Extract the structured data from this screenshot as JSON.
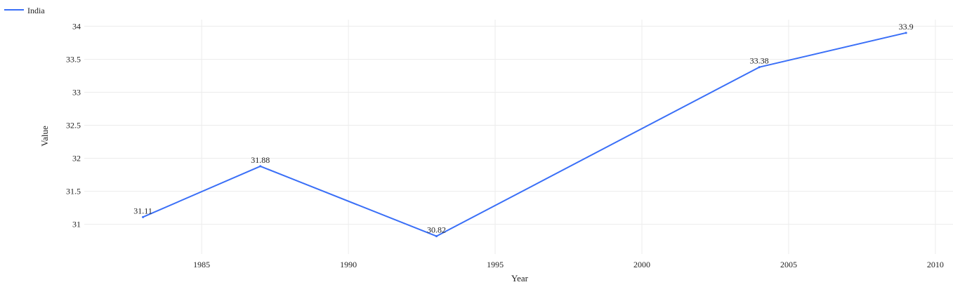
{
  "colors": {
    "series": "#3a6ff7",
    "grid": "#ececec",
    "text": "#222222"
  },
  "chart_data": {
    "type": "line",
    "title": "",
    "xlabel": "Year",
    "ylabel": "Value",
    "xlim": [
      1981,
      2010.6
    ],
    "ylim": [
      30.55,
      34.1
    ],
    "x_ticks": [
      1985,
      1990,
      1995,
      2000,
      2005,
      2010
    ],
    "y_ticks": [
      31,
      31.5,
      32,
      32.5,
      33,
      33.5,
      34
    ],
    "y_tick_labels": [
      "31",
      "31.5",
      "32",
      "32.5",
      "33",
      "33.5",
      "34"
    ],
    "grid": true,
    "legend_position": "top-left",
    "series": [
      {
        "name": "India",
        "color": "#3a6ff7",
        "points": [
          {
            "x": 1983,
            "y": 31.11,
            "label": "31.11"
          },
          {
            "x": 1987,
            "y": 31.88,
            "label": "31.88"
          },
          {
            "x": 1993,
            "y": 30.82,
            "label": "30.82"
          },
          {
            "x": 2004,
            "y": 33.38,
            "label": "33.38"
          },
          {
            "x": 2009,
            "y": 33.9,
            "label": "33.9"
          }
        ]
      }
    ]
  }
}
